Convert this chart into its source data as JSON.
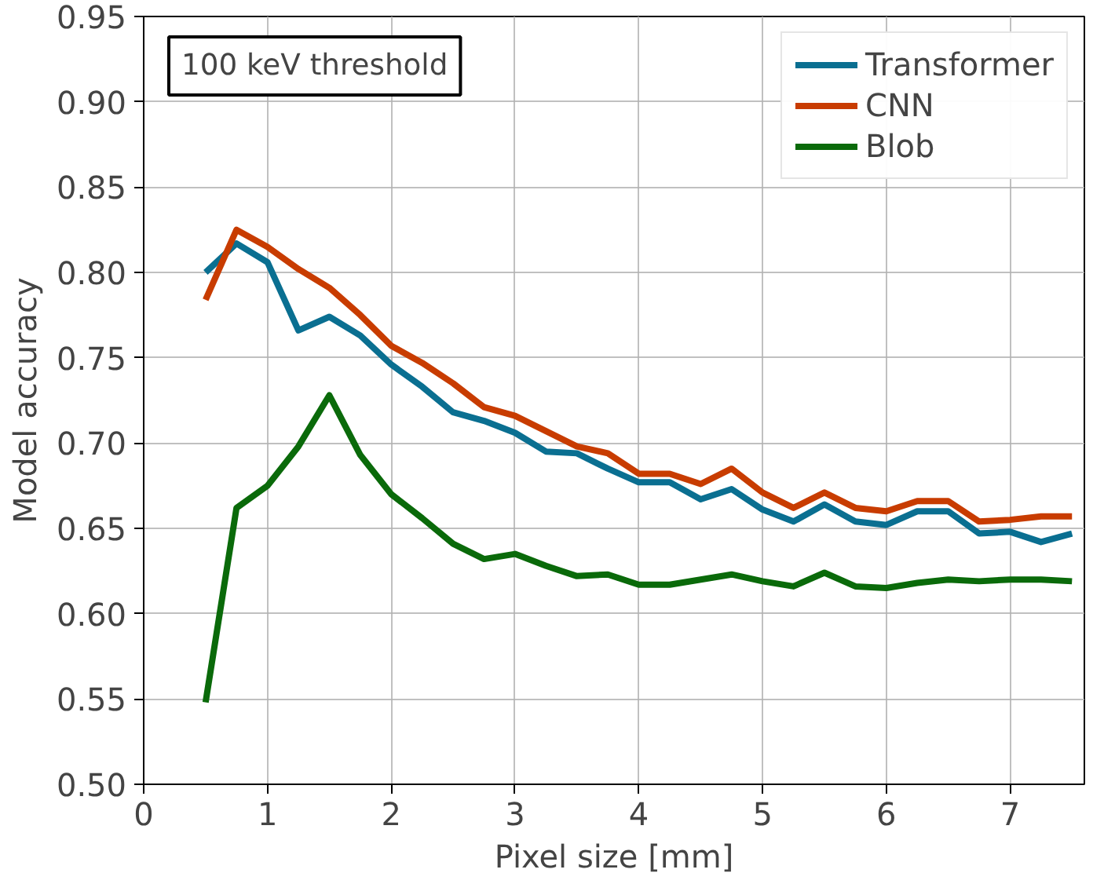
{
  "chart_data": {
    "type": "line",
    "xlabel": "Pixel size [mm]",
    "ylabel": "Model accuracy",
    "annotations": [
      "100 keV threshold"
    ],
    "x": [
      0.5,
      0.75,
      1,
      1.25,
      1.5,
      1.75,
      2,
      2.25,
      2.5,
      2.75,
      3,
      3.25,
      3.5,
      3.75,
      4,
      4.25,
      4.5,
      4.75,
      5,
      5.25,
      5.5,
      5.75,
      6,
      6.25,
      6.5,
      6.75,
      7,
      7.25,
      7.5
    ],
    "series": [
      {
        "name": "Transformer",
        "color": "#0a6f91",
        "values": [
          0.8,
          0.817,
          0.806,
          0.766,
          0.774,
          0.763,
          0.746,
          0.733,
          0.718,
          0.713,
          0.706,
          0.695,
          0.694,
          0.685,
          0.677,
          0.677,
          0.667,
          0.673,
          0.661,
          0.654,
          0.664,
          0.654,
          0.652,
          0.66,
          0.66,
          0.647,
          0.648,
          0.642,
          0.647
        ]
      },
      {
        "name": "CNN",
        "color": "#c83c00",
        "values": [
          0.784,
          0.825,
          0.815,
          0.802,
          0.791,
          0.775,
          0.757,
          0.747,
          0.735,
          0.721,
          0.716,
          0.707,
          0.698,
          0.694,
          0.682,
          0.682,
          0.676,
          0.685,
          0.671,
          0.662,
          0.671,
          0.662,
          0.66,
          0.666,
          0.666,
          0.654,
          0.655,
          0.657,
          0.657
        ]
      },
      {
        "name": "Blob",
        "color": "#0a6a0a",
        "values": [
          0.548,
          0.662,
          0.675,
          0.698,
          0.728,
          0.693,
          0.67,
          0.656,
          0.641,
          0.632,
          0.635,
          0.628,
          0.622,
          0.623,
          0.617,
          0.617,
          0.62,
          0.623,
          0.619,
          0.616,
          0.624,
          0.616,
          0.615,
          0.618,
          0.62,
          0.619,
          0.62,
          0.62,
          0.619
        ]
      }
    ],
    "xlim": [
      0,
      7.6
    ],
    "ylim": [
      0.5,
      0.95
    ],
    "xticks": [
      0,
      1,
      2,
      3,
      4,
      5,
      6,
      7
    ],
    "yticks": [
      {
        "value": 0.5,
        "label": "0.50"
      },
      {
        "value": 0.55,
        "label": "0.55"
      },
      {
        "value": 0.6,
        "label": "0.60"
      },
      {
        "value": 0.65,
        "label": "0.65"
      },
      {
        "value": 0.7,
        "label": "0.70"
      },
      {
        "value": 0.75,
        "label": "0.75"
      },
      {
        "value": 0.8,
        "label": "0.80"
      },
      {
        "value": 0.85,
        "label": "0.85"
      },
      {
        "value": 0.9,
        "label": "0.90"
      },
      {
        "value": 0.95,
        "label": "0.95"
      }
    ],
    "grid": true,
    "legend": "top right"
  }
}
